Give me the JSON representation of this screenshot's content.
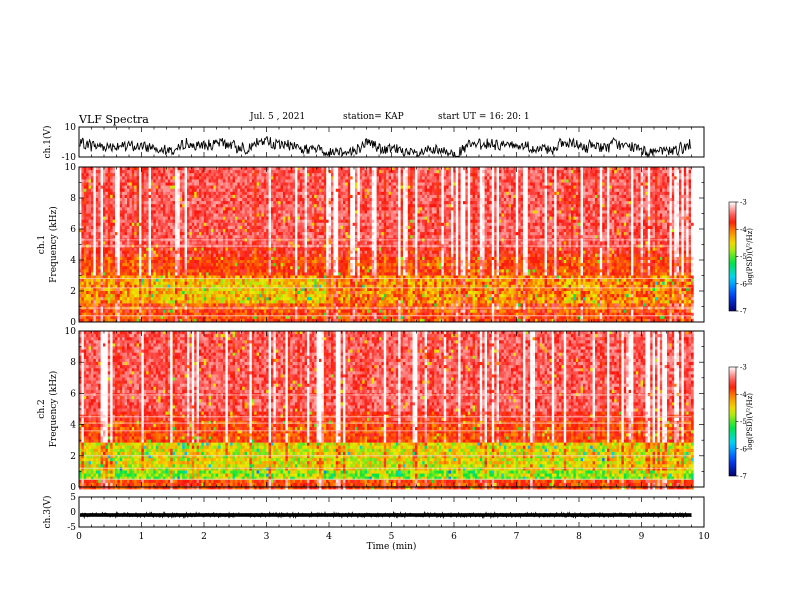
{
  "header": {
    "title": "VLF Spectra",
    "date": "Jul. 5 , 2021",
    "station": "station= KAP",
    "start": "start UT = 16: 20: 1"
  },
  "chart_data": [
    {
      "type": "line",
      "ylabel": "ch.1(V)",
      "ylim": [
        -10,
        10
      ],
      "ytick_labels": [
        "10",
        "-10"
      ],
      "xlim": [
        0,
        10
      ]
    },
    {
      "type": "heatmap",
      "ylabel": "ch.1\nFrequency (kHz)",
      "ylabel_lines": [
        "ch.1",
        "Frequency (kHz)"
      ],
      "ylim": [
        0,
        10
      ],
      "yticks": [
        0,
        2,
        4,
        6,
        8,
        10
      ],
      "ytick_labels": [
        "0",
        "2",
        "4",
        "6",
        "8",
        "10"
      ],
      "xlim": [
        0,
        10
      ],
      "colorbar": {
        "label": "log(PSD)(V²/Hz)",
        "range": [
          -7,
          -3
        ],
        "ticks": [
          -7,
          -6,
          -5,
          -4,
          -3
        ],
        "tick_labels": [
          "-7",
          "-6",
          "-5",
          "-4",
          "-3"
        ]
      }
    },
    {
      "type": "heatmap",
      "ylabel": "ch.2\nFrequency (kHz)",
      "ylabel_lines": [
        "ch.2",
        "Frequency (kHz)"
      ],
      "ylim": [
        0,
        10
      ],
      "yticks": [
        0,
        2,
        4,
        6,
        8,
        10
      ],
      "ytick_labels": [
        "0",
        "2",
        "4",
        "6",
        "8",
        "10"
      ],
      "xlim": [
        0,
        10
      ],
      "colorbar": {
        "label": "log(PSD)(V²/Hz)",
        "range": [
          -7,
          -3
        ],
        "ticks": [
          -7,
          -6,
          -5,
          -4,
          -3
        ],
        "tick_labels": [
          "-7",
          "-6",
          "-5",
          "-4",
          "-3"
        ]
      }
    },
    {
      "type": "line",
      "ylabel": "ch.3(V)",
      "ylim": [
        -5,
        5
      ],
      "yticks": [
        -5,
        0,
        5
      ],
      "ytick_labels": [
        "-5",
        "0",
        "5"
      ],
      "xlim": [
        0,
        10
      ],
      "xlabel": "Time (min)",
      "xticks": [
        0,
        1,
        2,
        3,
        4,
        5,
        6,
        7,
        8,
        9,
        10
      ],
      "xtick_labels": [
        "0",
        "1",
        "2",
        "3",
        "4",
        "5",
        "6",
        "7",
        "8",
        "9",
        "10"
      ],
      "data_end_min": 9.8
    }
  ]
}
